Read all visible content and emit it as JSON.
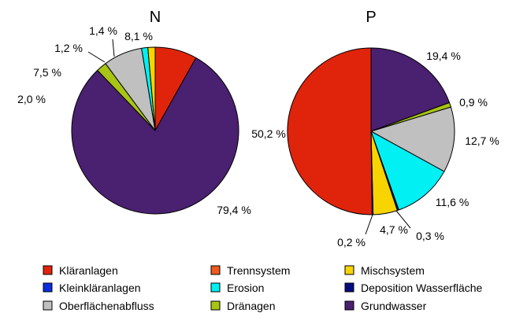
{
  "chart_data": [
    {
      "type": "pie",
      "title": "N",
      "categories": [
        "Kläranlagen",
        "Grundwasser",
        "Dränagen",
        "Oberflächenabfluss",
        "Erosion",
        "Kleinkläranlagen",
        "Mischsystem",
        "Trennsystem"
      ],
      "values": [
        8.1,
        79.4,
        2.0,
        7.5,
        1.2,
        0.0,
        1.4,
        0.0
      ],
      "labels": {
        "Kläranlagen": "8,1 %",
        "Grundwasser": "79,4 %",
        "Dränagen": "2,0 %",
        "Oberflächenabfluss": "7,5 %",
        "Erosion": "1,2 %",
        "Mischsystem": "1,4 %"
      }
    },
    {
      "type": "pie",
      "title": "P",
      "categories": [
        "Grundwasser",
        "Dränagen",
        "Oberflächenabfluss",
        "Erosion",
        "Deposition Wasserfläche",
        "Mischsystem",
        "Kleinkläranlagen",
        "Kläranlagen"
      ],
      "values": [
        19.4,
        0.9,
        12.7,
        11.6,
        0.3,
        4.7,
        0.2,
        50.2
      ],
      "labels": {
        "Grundwasser": "19,4 %",
        "Dränagen": "0,9 %",
        "Oberflächenabfluss": "12,7 %",
        "Erosion": "11,6 %",
        "Deposition Wasserfläche": "0,3 %",
        "Mischsystem": "4,7 %",
        "Kleinkläranlagen": "0,2 %",
        "Kläranlagen": "50,2 %"
      }
    }
  ],
  "legend": {
    "placement": "bottom",
    "items": [
      {
        "name": "Kläranlagen",
        "color": "#e0240c"
      },
      {
        "name": "Trennsystem",
        "color": "#f05a1e"
      },
      {
        "name": "Mischsystem",
        "color": "#f7d400"
      },
      {
        "name": "Kleinkläranlagen",
        "color": "#0a2ee0"
      },
      {
        "name": "Erosion",
        "color": "#00f0f4"
      },
      {
        "name": "Deposition Wasserfläche",
        "color": "#0a0a80"
      },
      {
        "name": "Oberflächenabfluss",
        "color": "#c0c0c0"
      },
      {
        "name": "Dränagen",
        "color": "#a8c414"
      },
      {
        "name": "Grundwasser",
        "color": "#4a2070"
      }
    ]
  }
}
